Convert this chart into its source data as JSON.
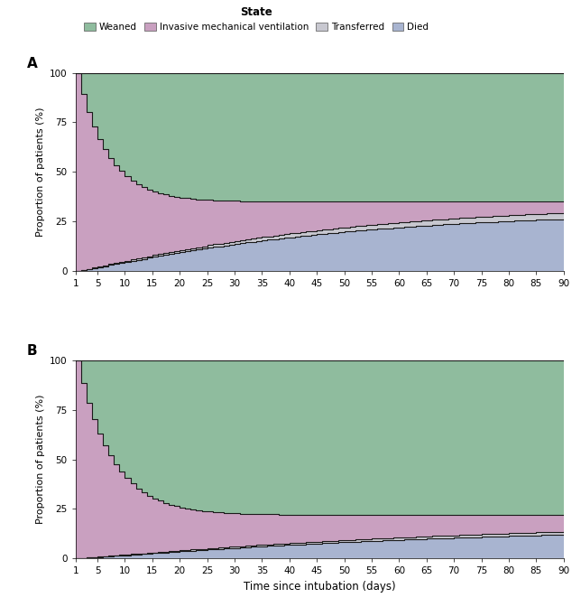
{
  "legend_title": "State",
  "legend_labels": [
    "Weaned",
    "Invasive mechanical ventilation",
    "Transferred",
    "Died"
  ],
  "colors": {
    "weaned": "#8fbc9e",
    "imv": "#c9a0c0",
    "transferred": "#c8c8d0",
    "died": "#a8b4d0"
  },
  "xlabel": "Time since intubation (days)",
  "ylabel": "Proportion of patients (%)",
  "xlim": [
    1,
    90
  ],
  "ylim": [
    0,
    100
  ],
  "xticks": [
    1,
    5,
    10,
    15,
    20,
    25,
    30,
    35,
    40,
    45,
    50,
    55,
    60,
    65,
    70,
    75,
    80,
    85,
    90
  ],
  "yticks": [
    0,
    25,
    50,
    75,
    100
  ],
  "line_color": "#1a1a1a",
  "line_width": 0.8,
  "panel_A": {
    "label": "A",
    "final_weaned": 65,
    "final_died": 30,
    "final_transferred": 5,
    "weaned_speed": 0.18,
    "died_speed": 0.045,
    "transferred_speed": 0.035
  },
  "panel_B": {
    "label": "B",
    "final_weaned": 78,
    "final_died": 16,
    "final_transferred": 3,
    "weaned_speed": 0.16,
    "died_speed": 0.03,
    "transferred_speed": 0.025
  }
}
